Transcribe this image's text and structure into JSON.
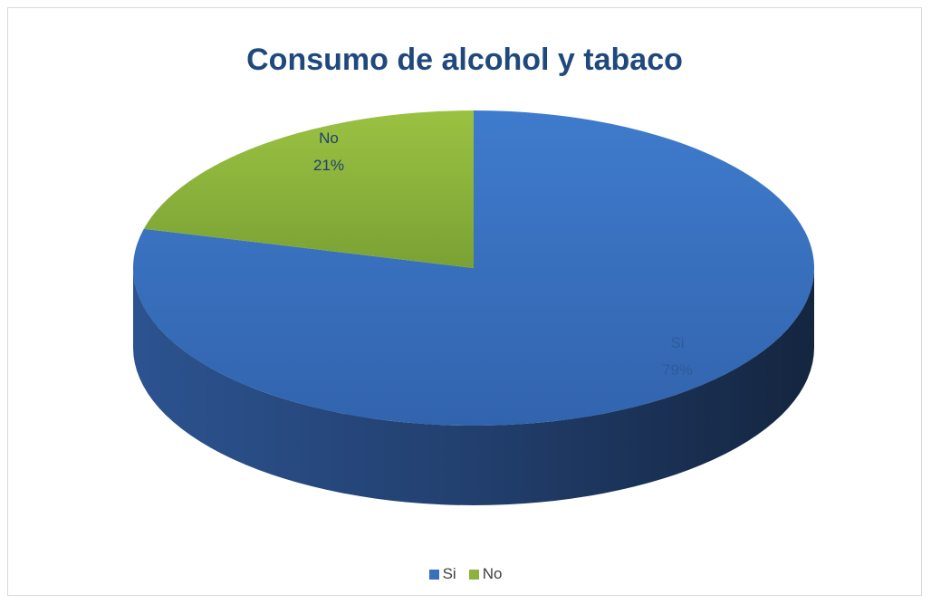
{
  "chart_data": {
    "type": "pie",
    "title": "Consumo de alcohol y tabaco",
    "categories": [
      "Si",
      "No"
    ],
    "values": [
      79,
      21
    ],
    "labels": [
      {
        "category": "Si",
        "percent": "79%"
      },
      {
        "category": "No",
        "percent": "21%"
      }
    ],
    "colors": {
      "Si": "#3a6fbd",
      "No": "#8db33e"
    },
    "style": "3d",
    "legend": "bottom"
  },
  "legend": {
    "items": [
      {
        "label": "Si",
        "color": "#3a6fbd"
      },
      {
        "label": "No",
        "color": "#8db33e"
      }
    ]
  }
}
